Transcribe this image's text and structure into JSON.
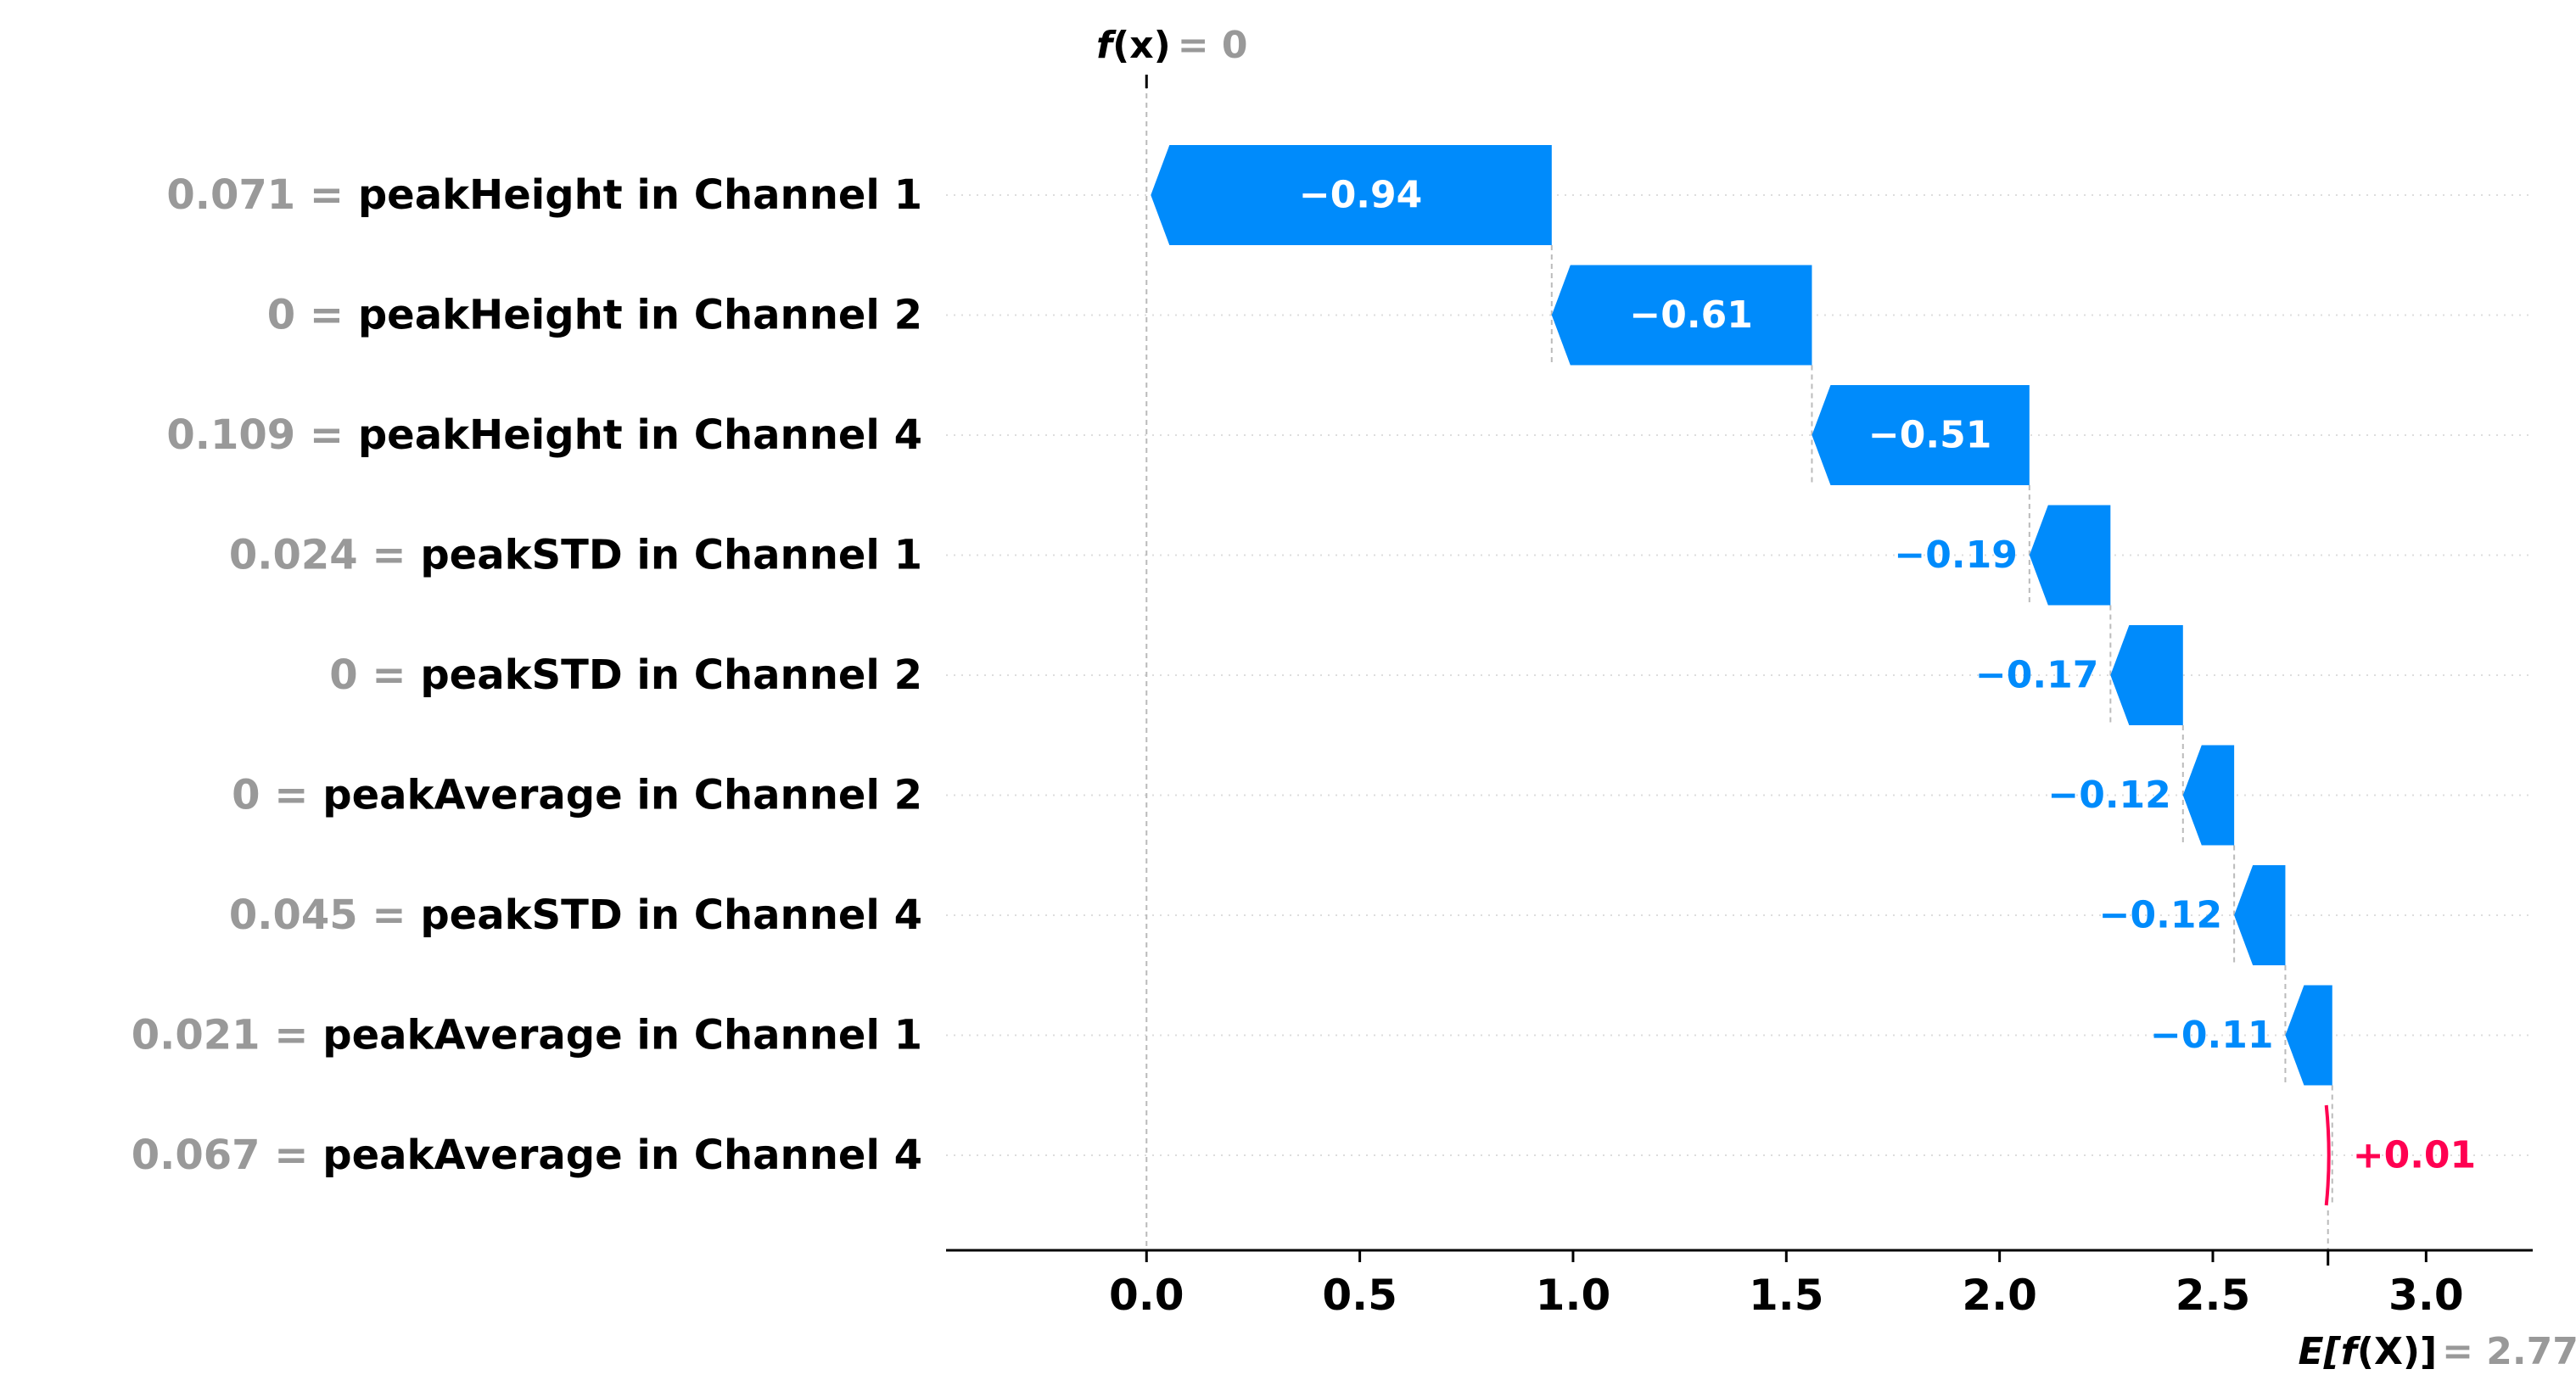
{
  "chart_data": {
    "type": "waterfall",
    "title": "",
    "xlabel": "",
    "ylabel": "",
    "xlim": [
      -0.47,
      3.25
    ],
    "xticks": [
      "0.0",
      "0.5",
      "1.0",
      "1.5",
      "2.0",
      "2.5",
      "3.0"
    ],
    "xtick_values": [
      0.0,
      0.5,
      1.0,
      1.5,
      2.0,
      2.5,
      3.0
    ],
    "grid": "horizontal dotted",
    "fx": {
      "label_f": "f",
      "label_x": "(x)",
      "value_text": "= 0",
      "value": 0.0
    },
    "base": {
      "label_E": "E[",
      "label_f": "f",
      "label_X": "(X)]",
      "value_text": "= 2.77",
      "value": 2.77
    },
    "colors": {
      "negative": "#008bfb",
      "positive": "#ff0051",
      "feature_value": "#999999"
    },
    "features": [
      {
        "value": "0.071",
        "name": "peakHeight in Channel 1",
        "shap": -0.94,
        "label": "−0.94"
      },
      {
        "value": "0",
        "name": "peakHeight in Channel 2",
        "shap": -0.61,
        "label": "−0.61"
      },
      {
        "value": "0.109",
        "name": "peakHeight in Channel 4",
        "shap": -0.51,
        "label": "−0.51"
      },
      {
        "value": "0.024",
        "name": "peakSTD in Channel 1",
        "shap": -0.19,
        "label": "−0.19"
      },
      {
        "value": "0",
        "name": "peakSTD in Channel 2",
        "shap": -0.17,
        "label": "−0.17"
      },
      {
        "value": "0",
        "name": "peakAverage in Channel 2",
        "shap": -0.12,
        "label": "−0.12"
      },
      {
        "value": "0.045",
        "name": "peakSTD in Channel 4",
        "shap": -0.12,
        "label": "−0.12"
      },
      {
        "value": "0.021",
        "name": "peakAverage in Channel 1",
        "shap": -0.11,
        "label": "−0.11"
      },
      {
        "value": "0.067",
        "name": "peakAverage in Channel 4",
        "shap": 0.01,
        "label": "+0.01"
      }
    ]
  }
}
